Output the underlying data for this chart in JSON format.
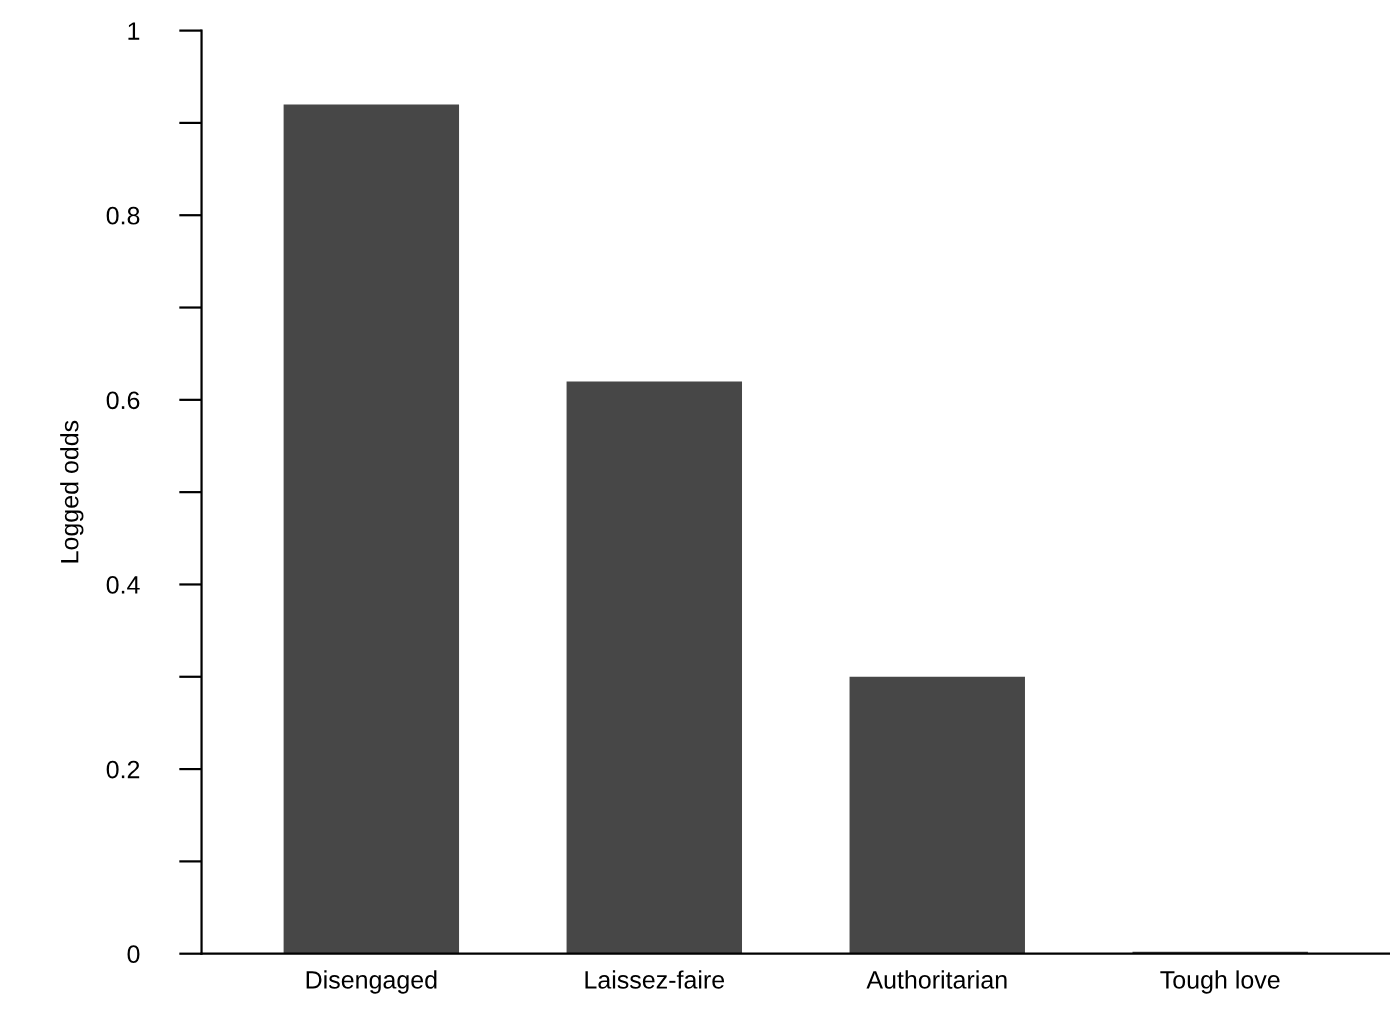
{
  "chart_data": {
    "type": "bar",
    "ylabel": "Logged odds",
    "categories": [
      "Disengaged",
      "Laissez-faire",
      "Authoritarian",
      "Tough love"
    ],
    "values": [
      0.92,
      0.62,
      0.3,
      0.002
    ],
    "color": "#474747",
    "ylim": [
      0,
      1
    ],
    "yticks": [
      0,
      {
        "value": 0.1,
        "label": null
      },
      0.2,
      {
        "value": 0.3,
        "label": null
      },
      0.4,
      {
        "value": 0.5,
        "label": null
      },
      0.6,
      {
        "value": 0.7,
        "label": null
      },
      0.8,
      {
        "value": 0.9,
        "label": null
      },
      1
    ],
    "grid": false
  }
}
